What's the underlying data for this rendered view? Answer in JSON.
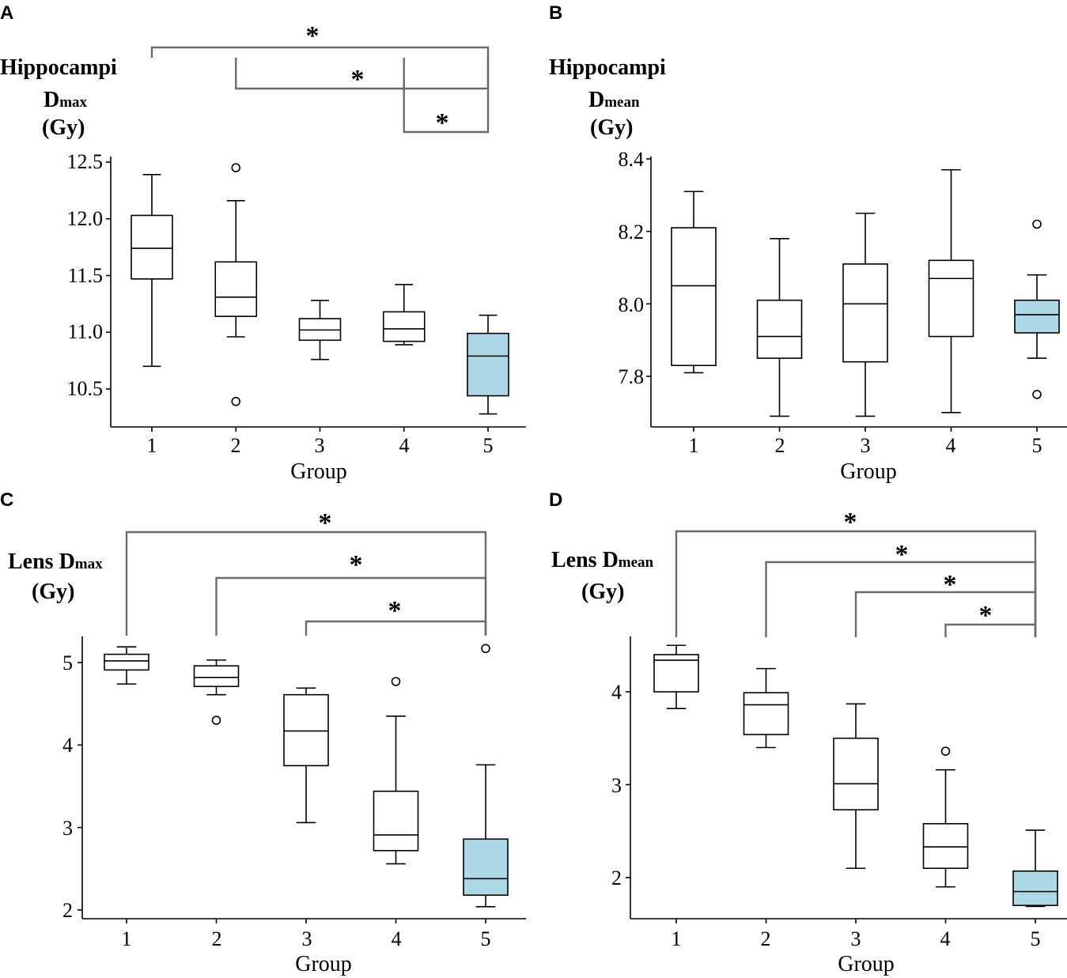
{
  "chart_data": [
    {
      "type": "box",
      "panel": "A",
      "ylabel_lines": [
        {
          "main": "Hippocampi",
          "sub": ""
        },
        {
          "main": "D",
          "sub": "max"
        },
        {
          "main": "(Gy)",
          "sub": ""
        }
      ],
      "xlabel": "Group",
      "categories": [
        "1",
        "2",
        "3",
        "4",
        "5"
      ],
      "ylim": [
        10.18,
        12.58
      ],
      "yticks": [
        10.5,
        11.0,
        11.5,
        12.0,
        12.5
      ],
      "ytick_labels": [
        "10.5",
        "11.0",
        "11.5",
        "12.0",
        "12.5"
      ],
      "highlight_color": "#add8e6",
      "highlight_index": 4,
      "boxes": [
        {
          "min": 10.7,
          "q1": 11.47,
          "median": 11.74,
          "q3": 12.03,
          "max": 12.39,
          "outliers": []
        },
        {
          "min": 10.96,
          "q1": 11.14,
          "median": 11.31,
          "q3": 11.62,
          "max": 12.16,
          "outliers": [
            12.45,
            10.39
          ]
        },
        {
          "min": 10.76,
          "q1": 10.93,
          "median": 11.02,
          "q3": 11.12,
          "max": 11.28,
          "outliers": []
        },
        {
          "min": 10.89,
          "q1": 10.92,
          "median": 11.03,
          "q3": 11.18,
          "max": 11.42,
          "outliers": []
        },
        {
          "min": 10.28,
          "q1": 10.44,
          "median": 10.79,
          "q3": 10.99,
          "max": 11.15,
          "outliers": []
        }
      ],
      "comparisons": [
        {
          "from": 0,
          "to": 4,
          "label": "*"
        },
        {
          "from": 1,
          "to": 4,
          "label": "*"
        },
        {
          "from": 3,
          "to": 4,
          "label": "*"
        }
      ]
    },
    {
      "type": "box",
      "panel": "B",
      "ylabel_lines": [
        {
          "main": "Hippocampi",
          "sub": ""
        },
        {
          "main": "D",
          "sub": "mean"
        },
        {
          "main": "(Gy)",
          "sub": ""
        }
      ],
      "xlabel": "Group",
      "categories": [
        "1",
        "2",
        "3",
        "4",
        "5"
      ],
      "ylim": [
        7.654,
        8.4
      ],
      "yticks": [
        7.8,
        8.0,
        8.2,
        8.4
      ],
      "ytick_labels": [
        "7.8",
        "8.0",
        "8.2",
        "8.4"
      ],
      "highlight_color": "#add8e6",
      "highlight_index": 4,
      "boxes": [
        {
          "min": 7.81,
          "q1": 7.83,
          "median": 8.05,
          "q3": 8.21,
          "max": 8.31,
          "outliers": []
        },
        {
          "min": 7.69,
          "q1": 7.85,
          "median": 7.91,
          "q3": 8.01,
          "max": 8.18,
          "outliers": []
        },
        {
          "min": 7.69,
          "q1": 7.84,
          "median": 8.0,
          "q3": 8.11,
          "max": 8.25,
          "outliers": []
        },
        {
          "min": 7.7,
          "q1": 7.91,
          "median": 8.07,
          "q3": 8.12,
          "max": 8.37,
          "outliers": []
        },
        {
          "min": 7.85,
          "q1": 7.92,
          "median": 7.97,
          "q3": 8.01,
          "max": 8.08,
          "outliers": [
            8.22,
            7.75
          ]
        }
      ],
      "comparisons": []
    },
    {
      "type": "box",
      "panel": "C",
      "ylabel_lines": [
        {
          "main": "Lens D",
          "sub": "max"
        },
        {
          "main": "(Gy)",
          "sub": ""
        }
      ],
      "xlabel": "Group",
      "categories": [
        "1",
        "2",
        "3",
        "4",
        "5"
      ],
      "ylim": [
        1.89,
        5.3
      ],
      "yticks": [
        2,
        3,
        4,
        5
      ],
      "ytick_labels": [
        "2",
        "3",
        "4",
        "5"
      ],
      "highlight_color": "#add8e6",
      "highlight_index": 4,
      "boxes": [
        {
          "min": 4.74,
          "q1": 4.91,
          "median": 5.02,
          "q3": 5.1,
          "max": 5.19,
          "outliers": []
        },
        {
          "min": 4.61,
          "q1": 4.71,
          "median": 4.82,
          "q3": 4.96,
          "max": 5.03,
          "outliers": [
            4.3
          ]
        },
        {
          "min": 3.06,
          "q1": 3.75,
          "median": 4.17,
          "q3": 4.61,
          "max": 4.69,
          "outliers": []
        },
        {
          "min": 2.56,
          "q1": 2.72,
          "median": 2.91,
          "q3": 3.44,
          "max": 4.35,
          "outliers": [
            4.77
          ]
        },
        {
          "min": 2.04,
          "q1": 2.18,
          "median": 2.38,
          "q3": 2.86,
          "max": 3.76,
          "outliers": [
            5.17
          ]
        }
      ],
      "comparisons": [
        {
          "from": 0,
          "to": 4,
          "label": "*"
        },
        {
          "from": 1,
          "to": 4,
          "label": "*"
        },
        {
          "from": 2,
          "to": 4,
          "label": "*"
        }
      ]
    },
    {
      "type": "box",
      "panel": "D",
      "ylabel_lines": [
        {
          "main": "Lens D",
          "sub": "mean"
        },
        {
          "main": "(Gy)",
          "sub": ""
        }
      ],
      "xlabel": "Group",
      "categories": [
        "1",
        "2",
        "3",
        "4",
        "5"
      ],
      "ylim": [
        1.55,
        4.57
      ],
      "yticks": [
        2,
        3,
        4
      ],
      "ytick_labels": [
        "2",
        "3",
        "4"
      ],
      "highlight_color": "#add8e6",
      "highlight_index": 4,
      "boxes": [
        {
          "min": 3.82,
          "q1": 4.0,
          "median": 4.34,
          "q3": 4.4,
          "max": 4.5,
          "outliers": []
        },
        {
          "min": 3.4,
          "q1": 3.54,
          "median": 3.86,
          "q3": 3.99,
          "max": 4.25,
          "outliers": []
        },
        {
          "min": 2.1,
          "q1": 2.73,
          "median": 3.01,
          "q3": 3.5,
          "max": 3.87,
          "outliers": []
        },
        {
          "min": 1.9,
          "q1": 2.1,
          "median": 2.33,
          "q3": 2.58,
          "max": 3.16,
          "outliers": [
            3.36
          ]
        },
        {
          "min": 1.69,
          "q1": 1.7,
          "median": 1.85,
          "q3": 2.07,
          "max": 2.51,
          "outliers": []
        }
      ],
      "comparisons": [
        {
          "from": 0,
          "to": 4,
          "label": "*"
        },
        {
          "from": 1,
          "to": 4,
          "label": "*"
        },
        {
          "from": 2,
          "to": 4,
          "label": "*"
        },
        {
          "from": 3,
          "to": 4,
          "label": "*"
        }
      ]
    }
  ]
}
